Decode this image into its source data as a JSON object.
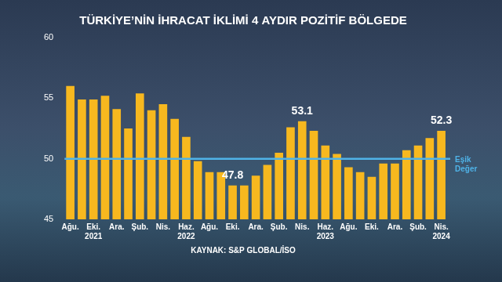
{
  "chart_data": {
    "type": "bar",
    "title": "TÜRKİYE’NİN İHRACAT İKLİMİ 4 AYDIR POZİTİF BÖLGEDE",
    "subtitle": "KAYNAK: S&P GLOBAL/İSO",
    "categories": [
      [
        "Ağu.",
        ""
      ],
      null,
      [
        "Eki.",
        "2021"
      ],
      null,
      "Ara.",
      null,
      "Şub.",
      null,
      "Nis.",
      null,
      [
        "Haz.",
        "2022"
      ],
      null,
      "Ağu.",
      null,
      "Eki.",
      null,
      "Ara.",
      null,
      "Şub.",
      null,
      "Nis.",
      null,
      [
        "Haz.",
        "2023"
      ],
      null,
      "Ağu.",
      null,
      "Eki.",
      null,
      "Ara.",
      null,
      "Şub.",
      null,
      [
        "Nis.",
        "2024"
      ]
    ],
    "values": [
      56.0,
      54.9,
      54.9,
      55.2,
      54.1,
      52.5,
      55.4,
      54.0,
      54.5,
      53.3,
      51.8,
      49.8,
      48.9,
      48.9,
      47.8,
      47.8,
      48.6,
      49.5,
      50.5,
      52.6,
      53.1,
      52.3,
      51.1,
      50.4,
      49.3,
      48.9,
      48.5,
      49.6,
      49.6,
      50.7,
      51.1,
      51.7,
      52.3
    ],
    "color": "#f7b81f",
    "ylim": [
      45,
      60
    ],
    "yticks": [
      45,
      50,
      55,
      60
    ],
    "grid": false,
    "annotations": [
      {
        "index": 14,
        "text": "47.8"
      },
      {
        "index": 20,
        "text": "53.1"
      },
      {
        "index": 32,
        "text": "52.3"
      }
    ],
    "threshold": {
      "value": 50,
      "label": "Eşik Değer",
      "color": "#4fb3e8"
    }
  }
}
